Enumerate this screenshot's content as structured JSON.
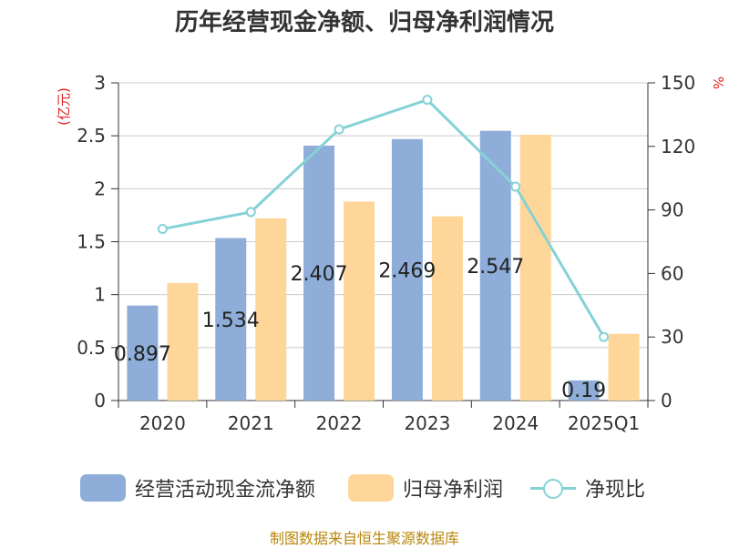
{
  "title": "历年经营现金净额、归母净利润情况",
  "source": "制图数据来自恒生聚源数据库",
  "colors": {
    "cash_flow": "#8eadd8",
    "net_profit": "#ffd699",
    "ratio": "#85d2d6",
    "unit": "#e02020",
    "grid": "#cccccc",
    "axis": "#333333",
    "label": "#222222"
  },
  "chart_data": {
    "type": "bar",
    "categories": [
      "2020",
      "2021",
      "2022",
      "2023",
      "2024",
      "2025Q1"
    ],
    "left_axis": {
      "unit": "(亿元)",
      "ylim": [
        0,
        3
      ],
      "ticks": [
        "0",
        "0.5",
        "1",
        "1.5",
        "2",
        "2.5",
        "3"
      ]
    },
    "right_axis": {
      "unit": "%",
      "ylim": [
        0,
        150
      ],
      "ticks": [
        "0",
        "30",
        "60",
        "90",
        "120",
        "150"
      ]
    },
    "series": [
      {
        "name": "经营活动现金流净额",
        "kind": "bar",
        "axis": "left",
        "values": [
          0.897,
          1.534,
          2.407,
          2.469,
          2.547,
          0.19
        ],
        "labels": [
          "0.897",
          "1.534",
          "2.407",
          "2.469",
          "2.547",
          "0.19"
        ]
      },
      {
        "name": "归母净利润",
        "kind": "bar",
        "axis": "left",
        "values": [
          1.11,
          1.72,
          1.88,
          1.74,
          2.51,
          0.63
        ]
      },
      {
        "name": "净现比",
        "kind": "line",
        "axis": "right",
        "values": [
          81,
          89,
          128,
          142,
          101,
          30
        ]
      }
    ]
  }
}
